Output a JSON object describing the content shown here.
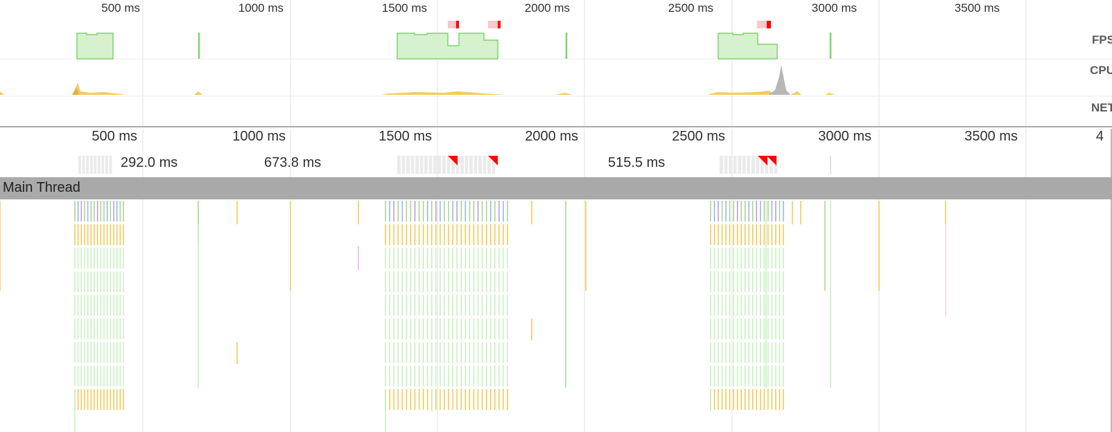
{
  "overview": {
    "ticks": [
      "500 ms",
      "1000 ms",
      "1500 ms",
      "2000 ms",
      "2500 ms",
      "3000 ms",
      "3500 ms"
    ],
    "tracks": [
      "FPS",
      "CPU",
      "NET"
    ],
    "colors": {
      "fps": "#7fd36d",
      "fps_fill": "#d5f1cd",
      "cpu_scripting": "#f2c54f",
      "cpu_other": "#b7b7b7",
      "long_frame": "#ff0000",
      "long_frame_bg": "#f8c8cc"
    }
  },
  "timeline": {
    "ruler": [
      "500 ms",
      "1000 ms",
      "1500 ms",
      "2000 ms",
      "2500 ms",
      "3000 ms",
      "3500 ms",
      "4"
    ],
    "frame_durations": [
      "292.0 ms",
      "673.8 ms",
      "515.5 ms"
    ],
    "thread_title": "Main Thread"
  }
}
